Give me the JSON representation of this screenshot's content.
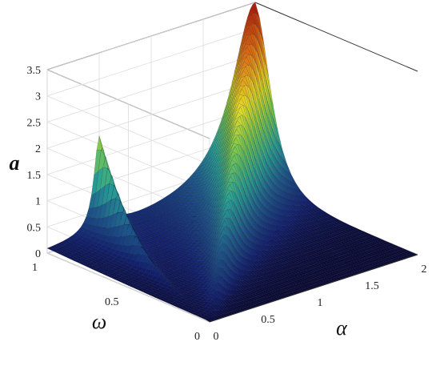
{
  "chart_data": {
    "type": "surface",
    "title": "",
    "xlabel": "α",
    "ylabel": "ω",
    "zlabel": "a",
    "xlim": [
      0,
      2
    ],
    "ylim": [
      0,
      1
    ],
    "zlim": [
      0,
      3.5
    ],
    "xticks": [
      "0",
      "0.5",
      "1",
      "1.5",
      "2"
    ],
    "yticks": [
      "0",
      "0.5",
      "1"
    ],
    "zticks": [
      "0",
      "0.5",
      "1",
      "1.5",
      "2",
      "2.5",
      "3",
      "3.5"
    ],
    "grid": true,
    "colormap": "jet",
    "colors": {
      "low": "#0b0b3a",
      "mid": "#2aa39a",
      "high": "#b81d0a"
    },
    "ridges": [
      {
        "alpha_at_omega0": 0.0,
        "alpha_at_omega1": 2.0,
        "peak_a": 3.5,
        "peak_alpha": 2.0,
        "peak_omega": 1.0
      },
      {
        "alpha_at_omega0": 0.0,
        "alpha_at_omega1": 0.5,
        "peak_a": 1.8,
        "peak_alpha": 0.5,
        "peak_omega": 1.0
      }
    ]
  }
}
